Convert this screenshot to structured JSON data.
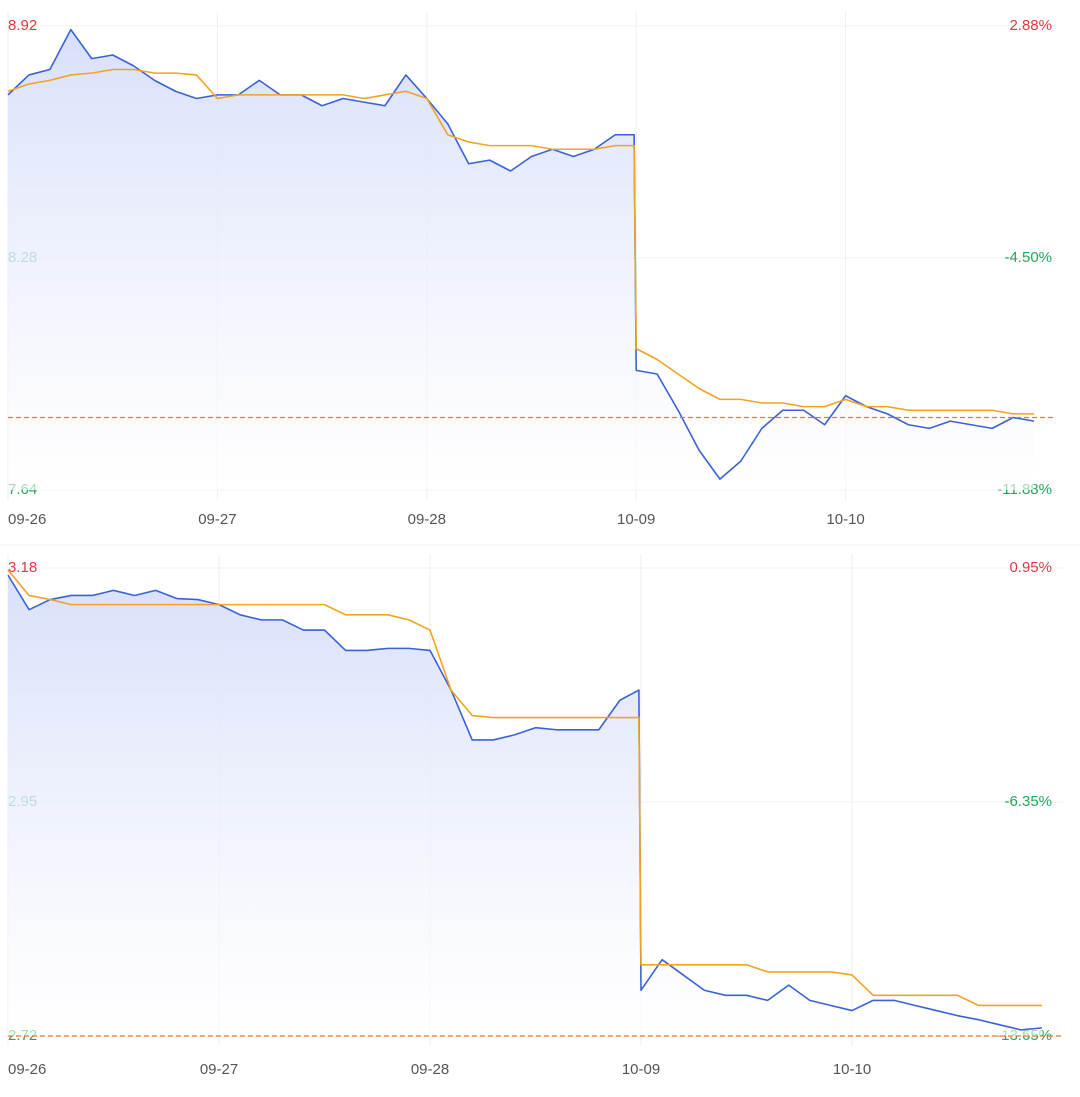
{
  "chart_data": [
    {
      "type": "line",
      "x": [
        0,
        0.1,
        0.2,
        0.3,
        0.4,
        0.5,
        0.6,
        0.7,
        0.8,
        0.9,
        1,
        1.1,
        1.2,
        1.3,
        1.4,
        1.5,
        1.6,
        1.7,
        1.8,
        1.9,
        2,
        2.1,
        2.2,
        2.3,
        2.4,
        2.5,
        2.6,
        2.7,
        2.8,
        2.9,
        2.99,
        3,
        3.1,
        3.2,
        3.3,
        3.4,
        3.5,
        3.6,
        3.7,
        3.8,
        3.9,
        4,
        4.1,
        4.2,
        4.3,
        4.4,
        4.5,
        4.6,
        4.7,
        4.8,
        4.9
      ],
      "xlim": [
        0,
        5
      ],
      "xticks": [
        {
          "value": 0,
          "label": "09-26"
        },
        {
          "value": 1,
          "label": "09-27"
        },
        {
          "value": 2,
          "label": "09-28"
        },
        {
          "value": 3,
          "label": "10-09"
        },
        {
          "value": 4,
          "label": "10-10"
        }
      ],
      "ylim": [
        7.64,
        8.92
      ],
      "yticks": [
        8.92,
        8.28,
        7.64
      ],
      "y2lim": [
        -11.88,
        2.88
      ],
      "y2ticks": [
        {
          "value": 2.88,
          "label": "2.88%"
        },
        {
          "value": -4.5,
          "label": "-4.50%"
        },
        {
          "value": -11.88,
          "label": "-11.88%"
        }
      ],
      "series": [
        {
          "color": "#3a62d6",
          "area": true,
          "values": [
            8.73,
            8.785,
            8.8,
            8.91,
            8.83,
            8.84,
            8.81,
            8.77,
            8.74,
            8.72,
            8.73,
            8.73,
            8.77,
            8.73,
            8.73,
            8.7,
            8.72,
            8.71,
            8.7,
            8.785,
            8.72,
            8.65,
            8.54,
            8.55,
            8.52,
            8.56,
            8.58,
            8.56,
            8.58,
            8.62,
            8.62,
            7.97,
            7.96,
            7.86,
            7.75,
            7.67,
            7.72,
            7.81,
            7.86,
            7.86,
            7.82,
            7.9,
            7.87,
            7.85,
            7.82,
            7.81,
            7.83,
            7.82,
            7.81,
            7.84,
            7.83
          ]
        },
        {
          "color": "#f0a420",
          "values": [
            8.74,
            8.76,
            8.77,
            8.785,
            8.79,
            8.8,
            8.8,
            8.79,
            8.79,
            8.785,
            8.72,
            8.73,
            8.73,
            8.73,
            8.73,
            8.73,
            8.73,
            8.72,
            8.73,
            8.74,
            8.72,
            8.62,
            8.6,
            8.59,
            8.59,
            8.59,
            8.58,
            8.58,
            8.58,
            8.59,
            8.59,
            8.03,
            8.0,
            7.96,
            7.92,
            7.89,
            7.89,
            7.88,
            7.88,
            7.87,
            7.87,
            7.89,
            7.87,
            7.87,
            7.86,
            7.86,
            7.86,
            7.86,
            7.86,
            7.85,
            7.85
          ]
        }
      ],
      "reference_line": 7.84,
      "up_color": "#e0393e",
      "down_color": "#23a55a",
      "reference_color": "#e8792b",
      "grid": true
    },
    {
      "type": "line",
      "x": [
        0,
        0.1,
        0.2,
        0.3,
        0.4,
        0.5,
        0.6,
        0.7,
        0.8,
        0.9,
        1,
        1.1,
        1.2,
        1.3,
        1.4,
        1.5,
        1.6,
        1.7,
        1.8,
        1.9,
        2,
        2.1,
        2.2,
        2.3,
        2.4,
        2.5,
        2.6,
        2.7,
        2.8,
        2.9,
        2.99,
        3,
        3.1,
        3.2,
        3.3,
        3.4,
        3.5,
        3.6,
        3.7,
        3.8,
        3.9,
        4,
        4.1,
        4.2,
        4.3,
        4.4,
        4.5,
        4.6,
        4.7,
        4.8,
        4.9
      ],
      "xlim": [
        0,
        5
      ],
      "xticks": [
        {
          "value": 0,
          "label": "09-26"
        },
        {
          "value": 1,
          "label": "09-27"
        },
        {
          "value": 2,
          "label": "09-28"
        },
        {
          "value": 3,
          "label": "10-09"
        },
        {
          "value": 4,
          "label": "10-10"
        }
      ],
      "ylim": [
        2.72,
        3.18
      ],
      "yticks": [
        3.18,
        2.95,
        2.72
      ],
      "y2lim": [
        -13.65,
        0.95
      ],
      "y2ticks": [
        {
          "value": 0.95,
          "label": "0.95%"
        },
        {
          "value": -6.35,
          "label": "-6.35%"
        },
        {
          "value": -13.65,
          "label": "-13.65%"
        }
      ],
      "series": [
        {
          "color": "#3a62d6",
          "area": true,
          "values": [
            3.173,
            3.139,
            3.149,
            3.153,
            3.153,
            3.158,
            3.153,
            3.158,
            3.15,
            3.149,
            3.144,
            3.134,
            3.129,
            3.129,
            3.119,
            3.119,
            3.099,
            3.099,
            3.101,
            3.101,
            3.099,
            3.06,
            3.011,
            3.011,
            3.016,
            3.023,
            3.021,
            3.021,
            3.021,
            3.05,
            3.06,
            2.765,
            2.795,
            2.78,
            2.765,
            2.76,
            2.76,
            2.755,
            2.77,
            2.755,
            2.75,
            2.745,
            2.755,
            2.755,
            2.75,
            2.745,
            2.74,
            2.736,
            2.731,
            2.726,
            2.728
          ]
        },
        {
          "color": "#f0a420",
          "values": [
            3.178,
            3.153,
            3.149,
            3.144,
            3.144,
            3.144,
            3.144,
            3.144,
            3.144,
            3.144,
            3.144,
            3.144,
            3.144,
            3.144,
            3.144,
            3.144,
            3.134,
            3.134,
            3.134,
            3.129,
            3.119,
            3.06,
            3.035,
            3.033,
            3.033,
            3.033,
            3.033,
            3.033,
            3.033,
            3.033,
            3.033,
            2.79,
            2.79,
            2.79,
            2.79,
            2.79,
            2.79,
            2.783,
            2.783,
            2.783,
            2.783,
            2.78,
            2.76,
            2.76,
            2.76,
            2.76,
            2.76,
            2.75,
            2.75,
            2.75,
            2.75
          ]
        }
      ],
      "reference_line": 2.72,
      "up_color": "#e0393e",
      "down_color": "#23a55a",
      "reference_color": "#e8792b",
      "grid": true
    }
  ]
}
